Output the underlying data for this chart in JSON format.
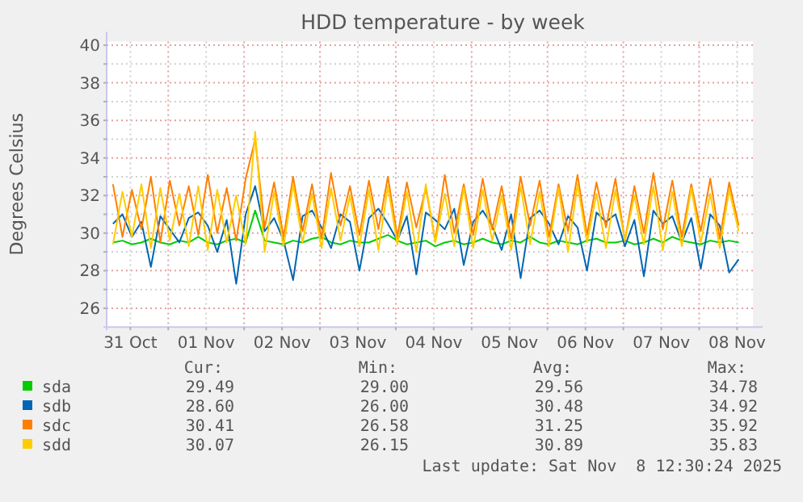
{
  "chart_data": {
    "type": "line",
    "title": "HDD temperature - by week",
    "ylabel": "Degrees Celsius",
    "xlim": [
      "2025-10-31T04:30",
      "2025-11-08T17:00"
    ],
    "ylim": [
      25,
      40.2
    ],
    "yticks": [
      26,
      {
        "value": 27,
        "label": null
      },
      28,
      {
        "value": 29,
        "label": null
      },
      30,
      {
        "value": 31,
        "label": null
      },
      32,
      {
        "value": 33,
        "label": null
      },
      34,
      {
        "value": 35,
        "label": null
      },
      36,
      {
        "value": 37,
        "label": null
      },
      38,
      {
        "value": 39,
        "label": null
      },
      40
    ],
    "xticks": [
      {
        "value": "2025-10-31T12:00",
        "label": "31 Oct"
      },
      {
        "value": "2025-11-01T00:00",
        "label": null
      },
      {
        "value": "2025-11-01T12:00",
        "label": "01 Nov"
      },
      {
        "value": "2025-11-02T00:00",
        "label": null
      },
      {
        "value": "2025-11-02T12:00",
        "label": "02 Nov"
      },
      {
        "value": "2025-11-03T00:00",
        "label": null
      },
      {
        "value": "2025-11-03T12:00",
        "label": "03 Nov"
      },
      {
        "value": "2025-11-04T00:00",
        "label": null
      },
      {
        "value": "2025-11-04T12:00",
        "label": "04 Nov"
      },
      {
        "value": "2025-11-05T00:00",
        "label": null
      },
      {
        "value": "2025-11-05T12:00",
        "label": "05 Nov"
      },
      {
        "value": "2025-11-06T00:00",
        "label": null
      },
      {
        "value": "2025-11-06T12:00",
        "label": "06 Nov"
      },
      {
        "value": "2025-11-07T00:00",
        "label": null
      },
      {
        "value": "2025-11-07T12:00",
        "label": "07 Nov"
      },
      {
        "value": "2025-11-08T00:00",
        "label": null
      },
      {
        "value": "2025-11-08T12:00",
        "label": "08 Nov"
      }
    ],
    "grid": true,
    "legend": "bottom",
    "marker": "none",
    "line_style": "solid",
    "x": [
      "2025-10-31T06:30",
      "2025-10-31T09:30",
      "2025-10-31T12:30",
      "2025-10-31T15:30",
      "2025-10-31T18:30",
      "2025-10-31T21:30",
      "2025-11-01T00:30",
      "2025-11-01T03:30",
      "2025-11-01T06:30",
      "2025-11-01T09:30",
      "2025-11-01T12:30",
      "2025-11-01T15:30",
      "2025-11-01T18:30",
      "2025-11-01T21:30",
      "2025-11-02T00:30",
      "2025-11-02T03:30",
      "2025-11-02T06:30",
      "2025-11-02T09:30",
      "2025-11-02T12:30",
      "2025-11-02T15:30",
      "2025-11-02T18:30",
      "2025-11-02T21:30",
      "2025-11-03T00:30",
      "2025-11-03T03:30",
      "2025-11-03T06:30",
      "2025-11-03T09:30",
      "2025-11-03T12:30",
      "2025-11-03T15:30",
      "2025-11-03T18:30",
      "2025-11-03T21:30",
      "2025-11-04T00:30",
      "2025-11-04T03:30",
      "2025-11-04T06:30",
      "2025-11-04T09:30",
      "2025-11-04T12:30",
      "2025-11-04T15:30",
      "2025-11-04T18:30",
      "2025-11-04T21:30",
      "2025-11-05T00:30",
      "2025-11-05T03:30",
      "2025-11-05T06:30",
      "2025-11-05T09:30",
      "2025-11-05T12:30",
      "2025-11-05T15:30",
      "2025-11-05T18:30",
      "2025-11-05T21:30",
      "2025-11-06T00:30",
      "2025-11-06T03:30",
      "2025-11-06T06:30",
      "2025-11-06T09:30",
      "2025-11-06T12:30",
      "2025-11-06T15:30",
      "2025-11-06T18:30",
      "2025-11-06T21:30",
      "2025-11-07T00:30",
      "2025-11-07T03:30",
      "2025-11-07T06:30",
      "2025-11-07T09:30",
      "2025-11-07T12:30",
      "2025-11-07T15:30",
      "2025-11-07T18:30",
      "2025-11-07T21:30",
      "2025-11-08T00:30",
      "2025-11-08T03:30",
      "2025-11-08T06:30",
      "2025-11-08T09:30",
      "2025-11-08T12:30"
    ],
    "series": [
      {
        "name": "sda",
        "color": "#00cc00",
        "values": [
          29.5,
          29.6,
          29.4,
          29.5,
          29.7,
          29.5,
          29.4,
          29.6,
          29.5,
          29.8,
          29.5,
          29.4,
          29.6,
          29.7,
          29.5,
          31.2,
          29.6,
          29.5,
          29.4,
          29.6,
          29.5,
          29.7,
          29.8,
          29.5,
          29.4,
          29.6,
          29.5,
          29.5,
          29.7,
          29.9,
          29.6,
          29.4,
          29.5,
          29.6,
          29.3,
          29.5,
          29.6,
          29.4,
          29.5,
          29.7,
          29.5,
          29.4,
          29.6,
          29.5,
          29.8,
          29.5,
          29.4,
          29.6,
          29.5,
          29.4,
          29.6,
          29.7,
          29.5,
          29.5,
          29.6,
          29.4,
          29.5,
          29.7,
          29.5,
          29.8,
          29.6,
          29.5,
          29.4,
          29.6,
          29.5,
          29.6,
          29.5
        ]
      },
      {
        "name": "sdb",
        "color": "#0066b3",
        "values": [
          30.5,
          31.0,
          29.8,
          30.6,
          28.2,
          30.9,
          30.2,
          29.5,
          30.8,
          31.1,
          30.4,
          29.0,
          30.7,
          27.3,
          31.0,
          32.5,
          30.1,
          30.8,
          29.6,
          27.5,
          30.9,
          31.2,
          30.3,
          29.2,
          31.0,
          30.6,
          28.0,
          30.8,
          31.3,
          30.5,
          29.6,
          30.9,
          27.8,
          31.1,
          30.7,
          30.2,
          31.3,
          28.3,
          30.6,
          31.2,
          30.4,
          29.1,
          31.0,
          27.6,
          30.8,
          31.2,
          30.5,
          29.4,
          30.9,
          30.3,
          28.0,
          31.1,
          30.6,
          31.0,
          29.3,
          30.7,
          27.7,
          31.2,
          30.5,
          30.9,
          29.5,
          30.8,
          28.1,
          31.0,
          30.4,
          27.9,
          28.6
        ]
      },
      {
        "name": "sdc",
        "color": "#ff8000",
        "values": [
          32.6,
          29.8,
          32.3,
          30.2,
          33.0,
          29.5,
          32.8,
          30.4,
          32.5,
          29.9,
          33.1,
          30.0,
          32.4,
          29.6,
          32.9,
          35.0,
          30.3,
          32.7,
          29.8,
          33.0,
          30.1,
          32.6,
          29.7,
          33.2,
          30.4,
          32.5,
          29.9,
          32.8,
          30.2,
          33.0,
          29.8,
          32.7,
          30.3,
          32.4,
          29.6,
          33.1,
          30.0,
          32.6,
          29.9,
          32.9,
          30.2,
          32.5,
          29.7,
          33.0,
          30.4,
          32.8,
          29.8,
          32.6,
          30.1,
          33.1,
          29.9,
          32.7,
          30.3,
          32.9,
          29.6,
          32.5,
          30.0,
          33.2,
          30.2,
          32.8,
          29.8,
          32.6,
          30.1,
          32.9,
          29.7,
          32.7,
          30.4
        ]
      },
      {
        "name": "sdd",
        "color": "#ffcc00",
        "values": [
          29.4,
          32.2,
          29.8,
          32.6,
          29.2,
          32.4,
          29.6,
          32.1,
          29.3,
          32.5,
          29.1,
          32.3,
          29.5,
          32.0,
          29.4,
          35.4,
          29.0,
          32.2,
          29.3,
          32.6,
          29.5,
          32.1,
          29.2,
          32.4,
          29.6,
          32.0,
          29.3,
          32.3,
          29.1,
          32.5,
          29.4,
          32.2,
          29.0,
          32.6,
          29.5,
          32.1,
          29.3,
          32.4,
          29.2,
          32.3,
          29.6,
          32.0,
          29.1,
          32.5,
          29.4,
          32.2,
          29.3,
          32.4,
          29.0,
          32.6,
          29.5,
          32.1,
          29.2,
          32.3,
          29.6,
          32.0,
          29.4,
          32.5,
          29.1,
          32.2,
          29.3,
          32.4,
          29.5,
          32.1,
          29.2,
          32.3,
          30.1
        ]
      }
    ],
    "annotations": [
      "Cur:",
      "Min:",
      "Avg:",
      "Max:",
      "29.49",
      "29.00",
      "29.56",
      "34.78",
      "28.60",
      "26.00",
      "30.48",
      "34.92",
      "30.41",
      "26.58",
      "31.25",
      "35.92",
      "30.07",
      "26.15",
      "30.89",
      "35.83",
      "Last update: Sat Nov  8 12:30:24 2025"
    ]
  }
}
